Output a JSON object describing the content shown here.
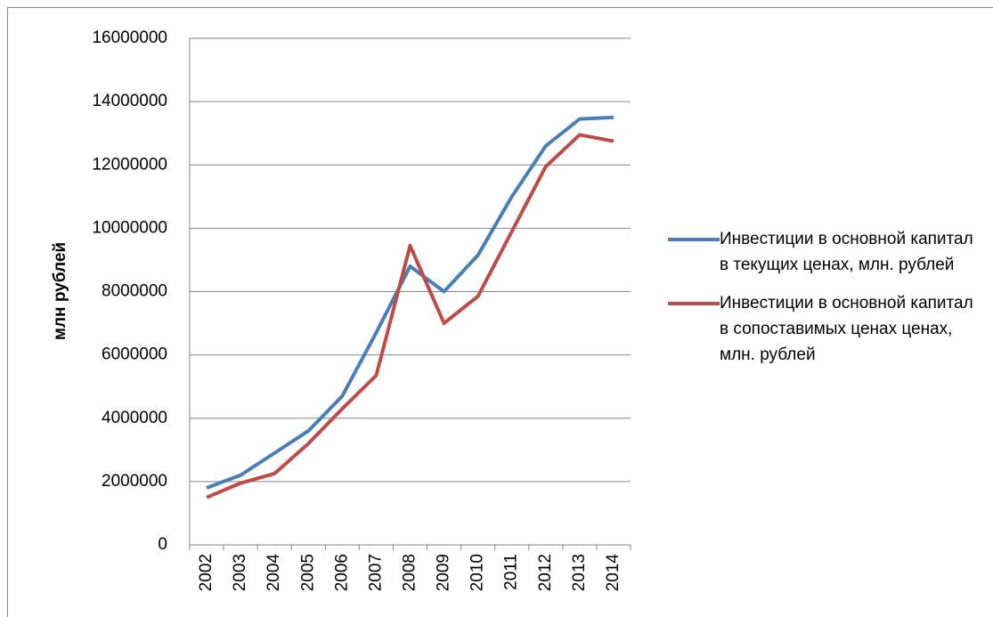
{
  "chart_data": {
    "type": "line",
    "y_label": "млн рублей",
    "categories": [
      "2002",
      "2003",
      "2004",
      "2005",
      "2006",
      "2007",
      "2008",
      "2009",
      "2010",
      "2011",
      "2012",
      "2013",
      "2014"
    ],
    "series": [
      {
        "name": "Инвестиции в основной капитал в текущих ценах, млн. рублей",
        "color": "#4a7ebb",
        "values": [
          1800000,
          2200000,
          2900000,
          3600000,
          4700000,
          6700000,
          8800000,
          8000000,
          9150000,
          11000000,
          12600000,
          13450000,
          13500000
        ]
      },
      {
        "name": "Инвестиции в основной капитал в сопоставимых ценах ценах, млн. рублей",
        "color": "#be4b48",
        "values": [
          1500000,
          1950000,
          2250000,
          3200000,
          4300000,
          5350000,
          9450000,
          7000000,
          7850000,
          9900000,
          11950000,
          12950000,
          12750000
        ]
      }
    ],
    "ylim": [
      0,
      16000000
    ],
    "yticks": [
      0,
      2000000,
      4000000,
      6000000,
      8000000,
      10000000,
      12000000,
      14000000,
      16000000
    ],
    "grid": true,
    "legend": "right"
  }
}
